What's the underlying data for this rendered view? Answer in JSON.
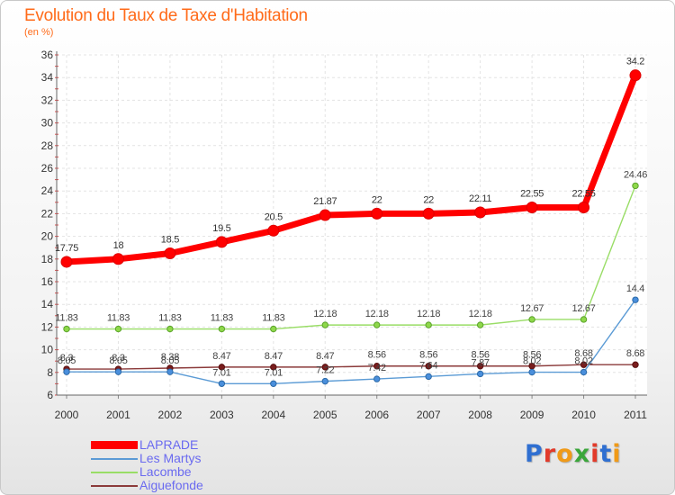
{
  "title": "Evolution du Taux de Taxe d'Habitation",
  "unit_label": "(en %)",
  "logo": {
    "text": "Proxiti",
    "letters": [
      {
        "ch": "P",
        "color": "#2f6fd1"
      },
      {
        "ch": "r",
        "color": "#e23a2a"
      },
      {
        "ch": "o",
        "color": "#f09a18"
      },
      {
        "ch": "x",
        "color": "#3aa63a"
      },
      {
        "ch": "i",
        "color": "#e23a2a"
      },
      {
        "ch": "t",
        "color": "#2f6fd1"
      },
      {
        "ch": "i",
        "color": "#f09a18"
      }
    ]
  },
  "chart_data": {
    "type": "line",
    "title": "Evolution du Taux de Taxe d'Habitation",
    "ylabel": "(en %)",
    "xlabel": "",
    "x": [
      "2000",
      "2001",
      "2002",
      "2003",
      "2004",
      "2005",
      "2006",
      "2007",
      "2008",
      "2009",
      "2010",
      "2011"
    ],
    "ylim": [
      6,
      36
    ],
    "yticks": [
      6,
      8,
      10,
      12,
      14,
      16,
      18,
      20,
      22,
      24,
      26,
      28,
      30,
      32,
      34,
      36
    ],
    "grid": true,
    "legend_position": "bottom-left",
    "series": [
      {
        "name": "LAPRADE",
        "color": "#ff0000",
        "values": [
          17.75,
          18,
          18.5,
          19.5,
          20.5,
          21.87,
          22,
          22,
          22.11,
          22.55,
          22.55,
          34.2
        ],
        "labels": [
          "17.75",
          "18",
          "18.5",
          "19.5",
          "20.5",
          "21.87",
          "22",
          "22",
          "22.11",
          "22.55",
          "22.55",
          "34.2"
        ]
      },
      {
        "name": "Les Martys",
        "color": "#5b9bd5",
        "values": [
          8.05,
          8.05,
          8.05,
          7.01,
          7.01,
          7.22,
          7.42,
          7.64,
          7.87,
          8.02,
          8.02,
          14.4
        ],
        "labels": [
          "8.05",
          "8.05",
          "8.05",
          "7.01",
          "7.01",
          "7.22",
          "7.42",
          "7.64",
          "7.87",
          "8.02",
          "8.02",
          "14.4"
        ]
      },
      {
        "name": "Lacombe",
        "color": "#99dd66",
        "values": [
          11.83,
          11.83,
          11.83,
          11.83,
          11.83,
          12.18,
          12.18,
          12.18,
          12.18,
          12.67,
          12.67,
          24.46
        ],
        "labels": [
          "11.83",
          "11.83",
          "11.83",
          "11.83",
          "11.83",
          "12.18",
          "12.18",
          "12.18",
          "12.18",
          "12.67",
          "12.67",
          "24.46"
        ]
      },
      {
        "name": "Aiguefonde",
        "color": "#8b3a3a",
        "values": [
          8.3,
          8.3,
          8.38,
          8.47,
          8.47,
          8.47,
          8.56,
          8.56,
          8.56,
          8.56,
          8.68,
          8.68
        ],
        "labels": [
          "8.3",
          "8.3",
          "8.38",
          "8.47",
          "8.47",
          "8.47",
          "8.56",
          "8.56",
          "8.56",
          "8.56",
          "8.68",
          "8.68"
        ]
      }
    ]
  }
}
